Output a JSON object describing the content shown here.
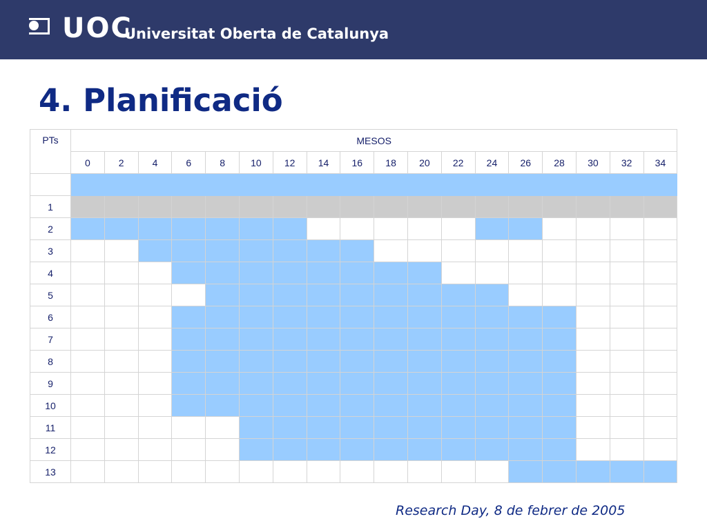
{
  "header": {
    "logo_short": "UOC",
    "logo_name": "Universitat Oberta de Catalunya",
    "bg_color": "#2e3a6a"
  },
  "page": {
    "title": "4. Planificació",
    "footer": "Research Day, 8 de febrer de 2005"
  },
  "colors": {
    "active": "#99ccff",
    "grey_row": "#cccccc",
    "title": "#0f2a84"
  },
  "table": {
    "pts_label": "PTs",
    "mesos_label": "MESOS",
    "months": [
      "0",
      "2",
      "4",
      "6",
      "8",
      "10",
      "12",
      "14",
      "16",
      "18",
      "20",
      "22",
      "24",
      "26",
      "28",
      "30",
      "32",
      "34"
    ],
    "rows": [
      {
        "label": "",
        "fill": "on",
        "active": [
          0,
          1,
          2,
          3,
          4,
          5,
          6,
          7,
          8,
          9,
          10,
          11,
          12,
          13,
          14,
          15,
          16,
          17
        ]
      },
      {
        "label": "1",
        "fill": "grey",
        "active": [
          0,
          1,
          2,
          3,
          4,
          5,
          6,
          7,
          8,
          9,
          10,
          11,
          12,
          13,
          14,
          15,
          16,
          17
        ]
      },
      {
        "label": "2",
        "fill": "on",
        "active": [
          0,
          1,
          2,
          3,
          4,
          5,
          6,
          12,
          13
        ]
      },
      {
        "label": "3",
        "fill": "on",
        "active": [
          2,
          3,
          4,
          5,
          6,
          7,
          8
        ]
      },
      {
        "label": "4",
        "fill": "on",
        "active": [
          3,
          4,
          5,
          6,
          7,
          8,
          9,
          10
        ]
      },
      {
        "label": "5",
        "fill": "on",
        "active": [
          4,
          5,
          6,
          7,
          8,
          9,
          10,
          11,
          12
        ]
      },
      {
        "label": "6",
        "fill": "on",
        "active": [
          3,
          4,
          5,
          6,
          7,
          8,
          9,
          10,
          11,
          12,
          13,
          14
        ]
      },
      {
        "label": "7",
        "fill": "on",
        "active": [
          3,
          4,
          5,
          6,
          7,
          8,
          9,
          10,
          11,
          12,
          13,
          14
        ]
      },
      {
        "label": "8",
        "fill": "on",
        "active": [
          3,
          4,
          5,
          6,
          7,
          8,
          9,
          10,
          11,
          12,
          13,
          14
        ]
      },
      {
        "label": "9",
        "fill": "on",
        "active": [
          3,
          4,
          5,
          6,
          7,
          8,
          9,
          10,
          11,
          12,
          13,
          14
        ]
      },
      {
        "label": "10",
        "fill": "on",
        "active": [
          3,
          4,
          5,
          6,
          7,
          8,
          9,
          10,
          11,
          12,
          13,
          14
        ]
      },
      {
        "label": "11",
        "fill": "on",
        "active": [
          5,
          6,
          7,
          8,
          9,
          10,
          11,
          12,
          13,
          14
        ]
      },
      {
        "label": "12",
        "fill": "on",
        "active": [
          5,
          6,
          7,
          8,
          9,
          10,
          11,
          12,
          13,
          14
        ]
      },
      {
        "label": "13",
        "fill": "on",
        "active": [
          13,
          14,
          15,
          16,
          17
        ]
      }
    ]
  }
}
